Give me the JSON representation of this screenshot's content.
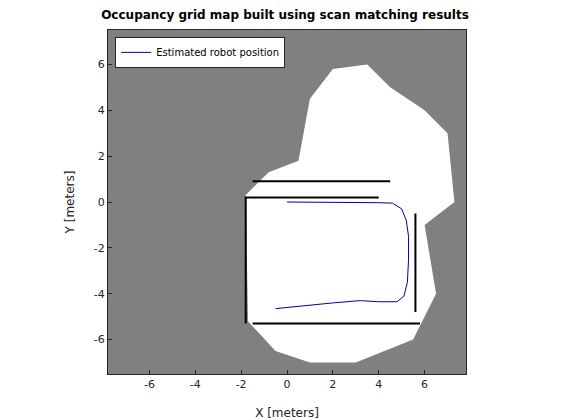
{
  "chart_data": {
    "type": "line",
    "title": "Occupancy grid map built using scan matching results",
    "x_label": "X [meters]",
    "y_label": "Y [meters]",
    "xlim": [
      -7.5,
      7.5
    ],
    "ylim": [
      -7.5,
      7.5
    ],
    "xticks": [
      -6,
      -4,
      -2,
      0,
      2,
      4,
      6
    ],
    "yticks": [
      -6,
      -4,
      -2,
      0,
      2,
      4,
      6
    ],
    "grid": false,
    "legend": "upper left",
    "series": [
      {
        "type": "area",
        "color": "#ffffff",
        "x": [
          -1.8,
          -0.8,
          0.5,
          1.0,
          2.0,
          3.5,
          4.5,
          6.0,
          7.0,
          7.3,
          6.0,
          6.5,
          5.5,
          3.0,
          1.0,
          -0.5,
          -1.7,
          -1.8
        ],
        "y": [
          0.3,
          1.3,
          1.8,
          4.5,
          5.8,
          6.0,
          5.0,
          4.0,
          3.0,
          0.0,
          -1.0,
          -4.0,
          -6.0,
          -7.0,
          -7.0,
          -6.5,
          -5.2,
          0.3
        ]
      },
      {
        "type": "line",
        "color": "#000000",
        "x": [
          -1.5,
          4.5,
          null,
          -1.8,
          -1.8,
          4.0,
          null,
          -1.5,
          5.8,
          null,
          5.6,
          5.6
        ],
        "y": [
          0.9,
          0.9,
          null,
          -5.3,
          0.2,
          0.2,
          null,
          -5.3,
          -5.3,
          null,
          -0.5,
          -4.8
        ]
      },
      {
        "type": "line",
        "name": "Estimated robot position",
        "color": "#0000aa",
        "x": [
          0,
          1,
          2,
          3,
          4,
          4.6,
          5.0,
          5.2,
          5.3,
          5.3,
          5.25,
          5.1,
          4.8,
          4,
          3.2,
          2,
          1,
          0,
          -0.5
        ],
        "y": [
          0,
          0,
          0,
          -0.02,
          -0.03,
          -0.05,
          -0.3,
          -0.8,
          -1.5,
          -2.5,
          -3.5,
          -4.1,
          -4.35,
          -4.35,
          -4.3,
          -4.4,
          -4.5,
          -4.6,
          -4.65
        ]
      }
    ]
  }
}
